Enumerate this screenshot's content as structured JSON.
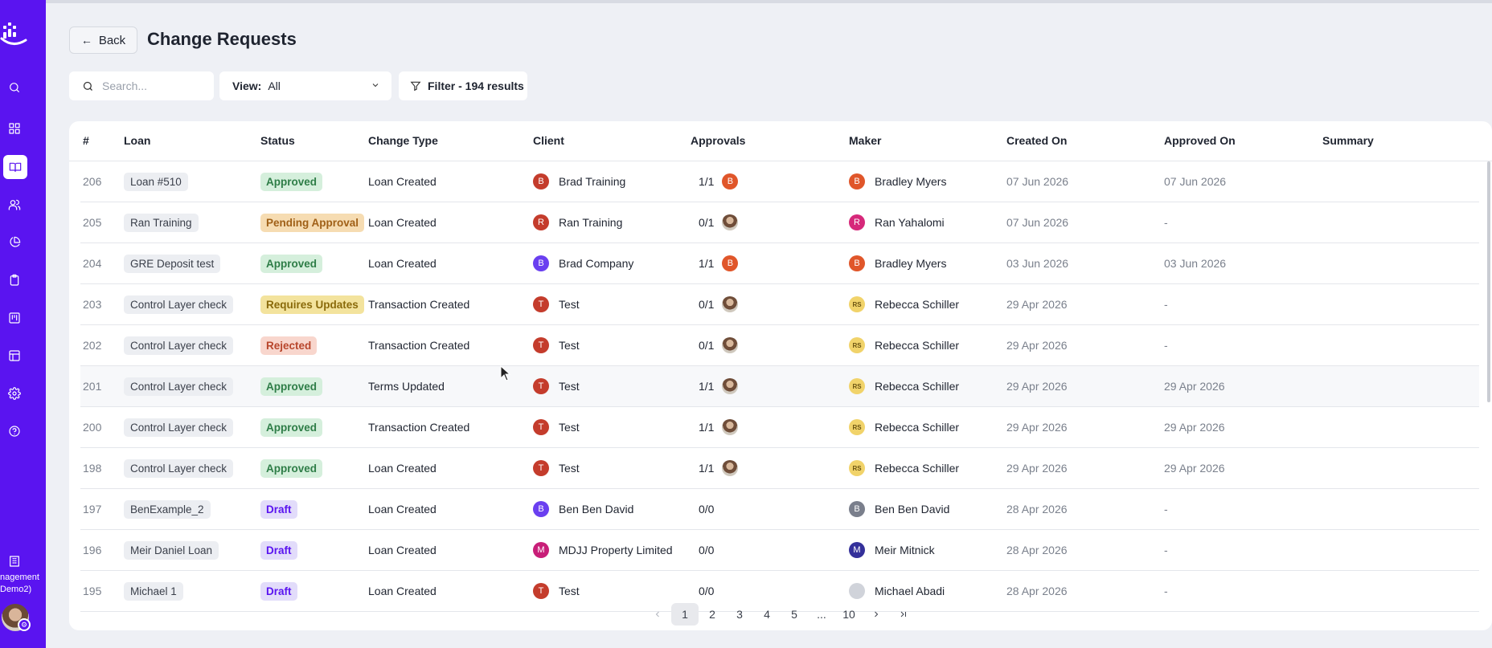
{
  "sidebar": {
    "org_label_line1": "nagement",
    "org_label_line2": "Demo2)",
    "icons": [
      "search-icon",
      "dashboard-icon",
      "book-icon",
      "users-icon",
      "pie-chart-icon",
      "clipboard-icon",
      "kanban-icon",
      "table-icon",
      "settings-icon",
      "help-icon"
    ],
    "active": "book-icon",
    "accent": "#5a14f0"
  },
  "header": {
    "back_label": "Back",
    "title": "Change Requests"
  },
  "toolbar": {
    "search_placeholder": "Search...",
    "view_label": "View:",
    "view_value": "All",
    "filter_label": "Filter - 194 results"
  },
  "table": {
    "columns": [
      "#",
      "Loan",
      "Status",
      "Change Type",
      "Client",
      "Approvals",
      "Maker",
      "Created On",
      "Approved On",
      "Summary"
    ],
    "rows": [
      {
        "num": "206",
        "loan": "Loan #510",
        "status": "Approved",
        "change": "Loan Created",
        "client_initial": "B",
        "client": "Brad Training",
        "client_color": "#c43c2c",
        "approvals": "1/1",
        "appr_avatar": "B",
        "appr_color": "#e0562a",
        "maker_initial": "B",
        "maker": "Bradley Myers",
        "maker_color": "#e0562a",
        "created": "07 Jun 2026",
        "approved": "07 Jun 2026"
      },
      {
        "num": "205",
        "loan": "Ran Training",
        "status": "Pending Approval",
        "change": "Loan Created",
        "client_initial": "R",
        "client": "Ran Training",
        "client_color": "#c43c2c",
        "approvals": "0/1",
        "appr_avatar": "",
        "appr_color": "photo",
        "maker_initial": "R",
        "maker": "Ran Yahalomi",
        "maker_color": "#d6287a",
        "created": "07 Jun 2026",
        "approved": "-"
      },
      {
        "num": "204",
        "loan": "GRE Deposit test",
        "status": "Approved",
        "change": "Loan Created",
        "client_initial": "B",
        "client": "Brad Company",
        "client_color": "#6a3ff0",
        "approvals": "1/1",
        "appr_avatar": "B",
        "appr_color": "#e0562a",
        "maker_initial": "B",
        "maker": "Bradley Myers",
        "maker_color": "#e0562a",
        "created": "03 Jun 2026",
        "approved": "03 Jun 2026"
      },
      {
        "num": "203",
        "loan": "Control Layer check",
        "status": "Requires Updates",
        "change": "Transaction Created",
        "client_initial": "T",
        "client": "Test",
        "client_color": "#c43c2c",
        "approvals": "0/1",
        "appr_avatar": "",
        "appr_color": "photo",
        "maker_initial": "RS",
        "maker": "Rebecca Schiller",
        "maker_color": "#f1d36a",
        "created": "29 Apr 2026",
        "approved": "-"
      },
      {
        "num": "202",
        "loan": "Control Layer check",
        "status": "Rejected",
        "change": "Transaction Created",
        "client_initial": "T",
        "client": "Test",
        "client_color": "#c43c2c",
        "approvals": "0/1",
        "appr_avatar": "",
        "appr_color": "photo",
        "maker_initial": "RS",
        "maker": "Rebecca Schiller",
        "maker_color": "#f1d36a",
        "created": "29 Apr 2026",
        "approved": "-"
      },
      {
        "num": "201",
        "loan": "Control Layer check",
        "status": "Approved",
        "change": "Terms Updated",
        "client_initial": "T",
        "client": "Test",
        "client_color": "#c43c2c",
        "approvals": "1/1",
        "appr_avatar": "",
        "appr_color": "photo",
        "maker_initial": "RS",
        "maker": "Rebecca Schiller",
        "maker_color": "#f1d36a",
        "created": "29 Apr 2026",
        "approved": "29 Apr 2026"
      },
      {
        "num": "200",
        "loan": "Control Layer check",
        "status": "Approved",
        "change": "Transaction Created",
        "client_initial": "T",
        "client": "Test",
        "client_color": "#c43c2c",
        "approvals": "1/1",
        "appr_avatar": "",
        "appr_color": "photo",
        "maker_initial": "RS",
        "maker": "Rebecca Schiller",
        "maker_color": "#f1d36a",
        "created": "29 Apr 2026",
        "approved": "29 Apr 2026"
      },
      {
        "num": "198",
        "loan": "Control Layer check",
        "status": "Approved",
        "change": "Loan Created",
        "client_initial": "T",
        "client": "Test",
        "client_color": "#c43c2c",
        "approvals": "1/1",
        "appr_avatar": "",
        "appr_color": "photo",
        "maker_initial": "RS",
        "maker": "Rebecca Schiller",
        "maker_color": "#f1d36a",
        "created": "29 Apr 2026",
        "approved": "29 Apr 2026"
      },
      {
        "num": "197",
        "loan": "BenExample_2",
        "status": "Draft",
        "change": "Loan Created",
        "client_initial": "B",
        "client": "Ben Ben David",
        "client_color": "#6a3ff0",
        "approvals": "0/0",
        "appr_avatar": null,
        "appr_color": "",
        "maker_initial": "B",
        "maker": "Ben Ben David",
        "maker_color": "#7a7f8c",
        "created": "28 Apr 2026",
        "approved": "-"
      },
      {
        "num": "196",
        "loan": "Meir Daniel Loan",
        "status": "Draft",
        "change": "Loan Created",
        "client_initial": "M",
        "client": "MDJJ Property Limited",
        "client_color": "#c81e78",
        "approvals": "0/0",
        "appr_avatar": null,
        "appr_color": "",
        "maker_initial": "M",
        "maker": "Meir Mitnick",
        "maker_color": "#34309a",
        "created": "28 Apr 2026",
        "approved": "-"
      },
      {
        "num": "195",
        "loan": "Michael 1",
        "status": "Draft",
        "change": "Loan Created",
        "client_initial": "T",
        "client": "Test",
        "client_color": "#c43c2c",
        "approvals": "0/0",
        "appr_avatar": null,
        "appr_color": "",
        "maker_initial": "",
        "maker": "Michael Abadi",
        "maker_color": "#d0d3da",
        "created": "28 Apr 2026",
        "approved": "-"
      }
    ]
  },
  "pagination": {
    "pages": [
      "1",
      "2",
      "3",
      "4",
      "5",
      "...",
      "10"
    ],
    "current": "1"
  }
}
